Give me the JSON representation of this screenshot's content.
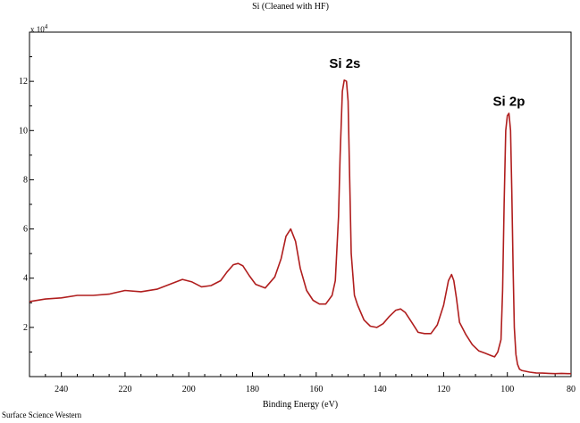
{
  "footer": "Surface Science Western",
  "chart_data": {
    "type": "line",
    "title": "Si (Cleaned with HF)",
    "xlabel": "Binding Energy (eV)",
    "ylabel": "",
    "y_multiplier": "x 10",
    "y_multiplier_exp": "4",
    "x_reversed": true,
    "xlim": [
      250,
      80
    ],
    "ylim": [
      0,
      14
    ],
    "x_ticks": [
      240,
      220,
      200,
      180,
      160,
      140,
      120,
      100,
      80
    ],
    "y_ticks": [
      2,
      4,
      6,
      8,
      10,
      12
    ],
    "grid": false,
    "line_color": "#b01e1e",
    "annotations": [
      {
        "text": "Si 2s",
        "x": 151,
        "y": 12.55
      },
      {
        "text": "Si 2p",
        "x": 99.5,
        "y": 11.0
      }
    ],
    "series": [
      {
        "x": [
          250,
          245,
          240,
          235,
          230,
          225,
          220,
          215,
          210,
          205,
          202,
          199,
          196,
          193,
          190,
          188,
          186,
          184.5,
          183,
          181,
          179,
          176,
          173,
          171,
          169.5,
          168,
          166.5,
          165,
          163,
          161,
          159,
          157,
          155,
          154,
          153,
          152.5,
          151.8,
          151.2,
          150.5,
          150,
          149.5,
          149,
          148,
          147,
          145,
          143,
          141,
          139,
          137,
          135,
          133.5,
          132,
          130,
          128,
          126,
          124,
          122,
          120,
          118.5,
          117.5,
          116.8,
          116,
          115,
          113,
          111,
          109,
          107,
          105,
          104,
          103,
          102,
          101.5,
          101,
          100.5,
          100,
          99.5,
          99,
          98.6,
          98.2,
          97.8,
          97.3,
          96.8,
          96.2,
          95.5,
          94.5,
          93,
          91,
          89,
          87,
          85,
          83,
          81,
          80
        ],
        "y": [
          3.05,
          3.15,
          3.2,
          3.3,
          3.3,
          3.35,
          3.5,
          3.45,
          3.55,
          3.8,
          3.95,
          3.85,
          3.65,
          3.7,
          3.9,
          4.25,
          4.55,
          4.6,
          4.5,
          4.1,
          3.75,
          3.6,
          4.05,
          4.8,
          5.7,
          6.0,
          5.5,
          4.4,
          3.5,
          3.1,
          2.95,
          2.95,
          3.3,
          3.9,
          6.5,
          9.0,
          11.6,
          12.05,
          12.0,
          11.2,
          8.0,
          5.0,
          3.3,
          2.9,
          2.3,
          2.05,
          2.0,
          2.15,
          2.45,
          2.7,
          2.75,
          2.6,
          2.2,
          1.8,
          1.75,
          1.75,
          2.1,
          2.9,
          3.9,
          4.15,
          3.9,
          3.2,
          2.2,
          1.7,
          1.3,
          1.05,
          0.95,
          0.85,
          0.8,
          1.0,
          1.5,
          3.5,
          7.0,
          10.0,
          10.6,
          10.7,
          10.0,
          7.5,
          4.5,
          2.0,
          0.9,
          0.5,
          0.3,
          0.25,
          0.22,
          0.18,
          0.15,
          0.14,
          0.13,
          0.12,
          0.13,
          0.12,
          0.12
        ]
      }
    ]
  }
}
